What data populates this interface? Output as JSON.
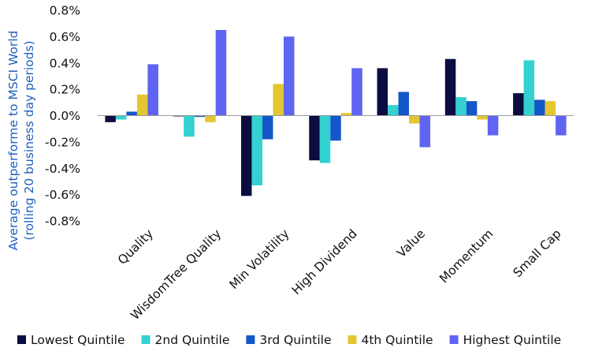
{
  "chart_data": {
    "type": "bar",
    "title": "",
    "xlabel": "",
    "ylabel_lines": [
      "Average  outperforme to MSCI World",
      "(rolling 20 business day periods)"
    ],
    "ylim": [
      -0.8,
      0.8
    ],
    "y_ticks": [
      0.8,
      0.6,
      0.4,
      0.2,
      0.0,
      -0.2,
      -0.4,
      -0.6,
      -0.8
    ],
    "y_tick_labels": [
      "0.8%",
      "0.6%",
      "0.4%",
      "0.2%",
      "0.0%",
      "-0.2%",
      "-0.4%",
      "-0.6%",
      "-0.8%"
    ],
    "categories": [
      "Quality",
      "WisdomTree Quality",
      "Min Volatility",
      "High Dividend",
      "Value",
      "Momentum",
      "Small Cap"
    ],
    "legend_position": "bottom",
    "grid": false,
    "series": [
      {
        "name": "Lowest Quintile",
        "color": "#0b0c3f",
        "values": [
          -0.05,
          0.0,
          -0.61,
          -0.34,
          0.36,
          0.43,
          0.17
        ]
      },
      {
        "name": "2nd Quintile",
        "color": "#33d1cf",
        "values": [
          -0.03,
          -0.16,
          -0.53,
          -0.36,
          0.08,
          0.14,
          0.42
        ]
      },
      {
        "name": "3rd Quintile",
        "color": "#1457c8",
        "values": [
          0.03,
          -0.01,
          -0.18,
          -0.19,
          0.18,
          0.11,
          0.12
        ]
      },
      {
        "name": "4th Quintile",
        "color": "#e4c630",
        "values": [
          0.16,
          -0.05,
          0.24,
          0.02,
          -0.06,
          -0.03,
          0.11
        ]
      },
      {
        "name": "Highest Quintile",
        "color": "#5f64f2",
        "values": [
          0.39,
          0.65,
          0.6,
          0.36,
          -0.24,
          -0.15,
          -0.15
        ]
      }
    ]
  }
}
